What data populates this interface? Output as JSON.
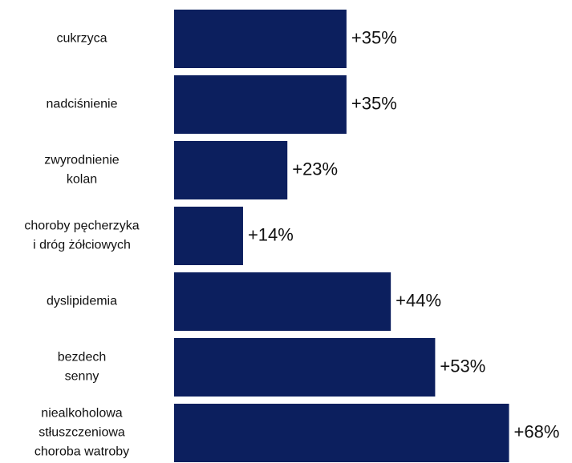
{
  "chart_data": {
    "type": "bar",
    "orientation": "horizontal",
    "categories": [
      "cukrzyca",
      "nadciśnienie",
      "zwyrodnienie\nkolan",
      "choroby pęcherzyka\ni dróg żółciowych",
      "dyslipidemia",
      "bezdech\nsenny",
      "niealkoholowa\nstłuszczeniowa\nchoroba watroby"
    ],
    "values": [
      35,
      35,
      23,
      14,
      44,
      53,
      68
    ],
    "value_labels": [
      "+35%",
      "+35%",
      "+23%",
      "+14%",
      "+44%",
      "+53%",
      "+68%"
    ],
    "color": "#0c1f5e"
  }
}
